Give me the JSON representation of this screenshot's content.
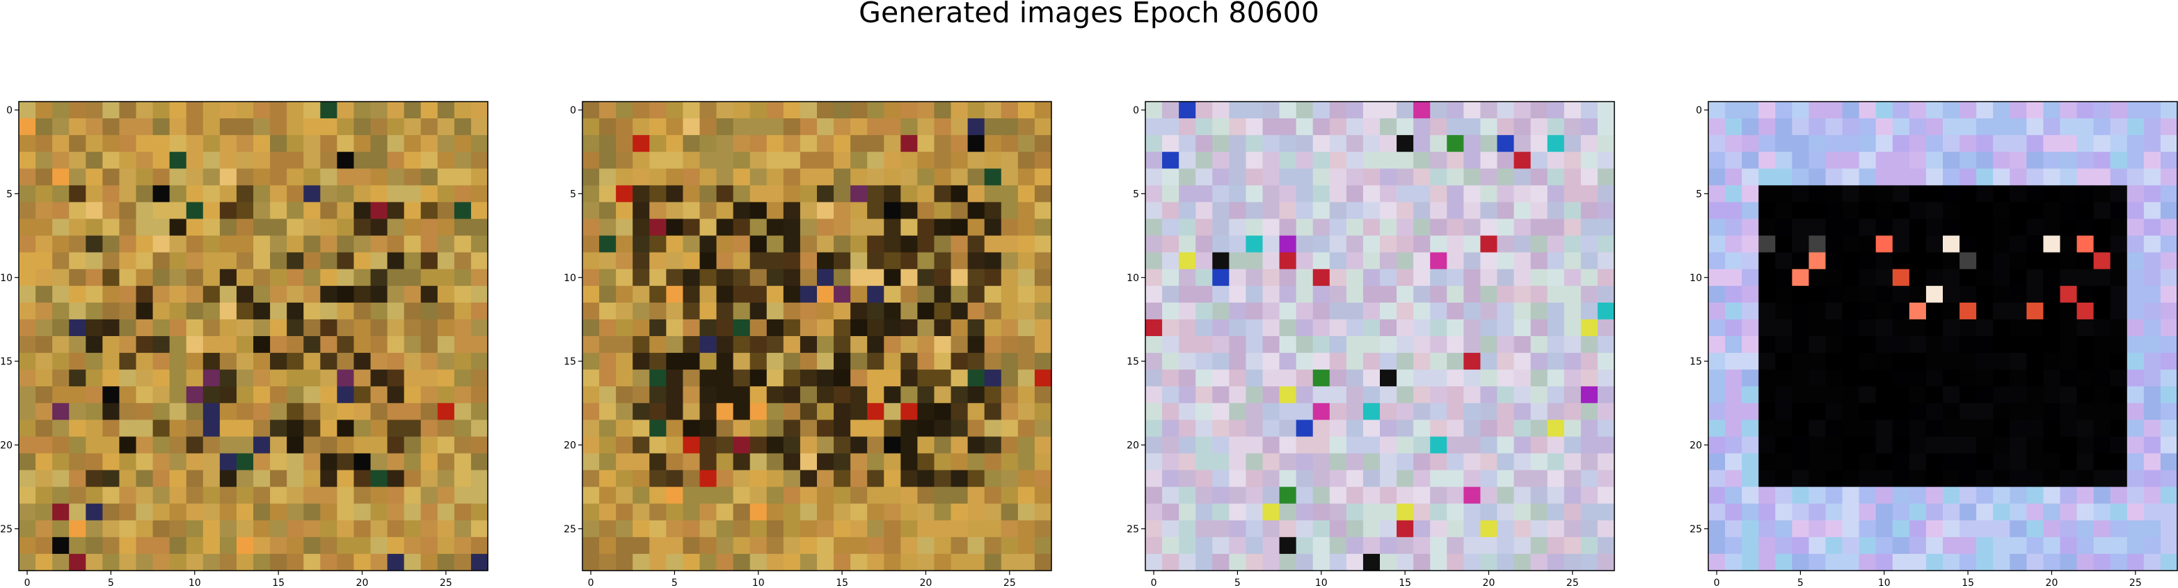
{
  "figure": {
    "title": "Generated images Epoch 80600"
  },
  "palette": {
    "warm_a": [
      "#c9a046",
      "#b88a3a",
      "#d2a24a",
      "#a8803c",
      "#c7b060",
      "#9c7636",
      "#d8a848",
      "#b5943e",
      "#c39046",
      "#8e7a3a",
      "#caa44e",
      "#b0803a",
      "#d6b45a",
      "#9e8a40",
      "#c08842",
      "#a89048"
    ],
    "warm_dark": [
      "#2a2010",
      "#3b2c12",
      "#1e1608",
      "#4a3616",
      "#56401a",
      "#322410",
      "#604818",
      "#261c0c",
      "#4e3414",
      "#3c3218"
    ],
    "pastel": [
      "#c9b7d6",
      "#b8c4e0",
      "#d6c2de",
      "#bcd6d8",
      "#e0c8d4",
      "#c4cce8",
      "#d2d6ea",
      "#b4c8c0",
      "#d8bcd2",
      "#c0b4dc",
      "#cfe0da",
      "#e2d4e6",
      "#bac0dc",
      "#d4e4e4",
      "#c6aed0",
      "#e6dcec"
    ],
    "pastel_lavender": [
      "#b4b4f0",
      "#a6c0f0",
      "#c8b0ec",
      "#b8d0f4",
      "#d0b8ee",
      "#9cb2ea",
      "#c2c8f4",
      "#e0c4f0",
      "#aabcf2",
      "#cdd8f6",
      "#9ed0ee",
      "#b9aaf0"
    ],
    "dark_region": [
      "#000000",
      "#030303",
      "#050508",
      "#020202",
      "#08080a",
      "#000000",
      "#010103"
    ],
    "accents": {
      "warm": [
        "#0a0a0a",
        "#1a4a2a",
        "#8a1a2a",
        "#2a2a5a",
        "#e8c070",
        "#f0a040",
        "#c02010",
        "#6a2a5a"
      ],
      "pastel": [
        "#101010",
        "#c02030",
        "#2040c0",
        "#e0e040",
        "#20c0c0",
        "#a020c0",
        "#d030a0",
        "#2a8a2a"
      ],
      "lavender_inner": [
        "#e05030",
        "#ff6a50",
        "#f8e8d8",
        "#d03030",
        "#203a20",
        "#404040",
        "#ff8060"
      ]
    }
  },
  "chart_data": [
    {
      "type": "heatmap",
      "image_style": "warm",
      "grid_size": 28,
      "xlim": [
        -0.5,
        27.5
      ],
      "ylim": [
        27.5,
        -0.5
      ],
      "xticks": [
        0,
        5,
        10,
        15,
        20,
        25
      ],
      "yticks": [
        0,
        5,
        10,
        15,
        20,
        25
      ],
      "xtick_labels": [
        "0",
        "5",
        "10",
        "15",
        "20",
        "25"
      ],
      "ytick_labels": [
        "0",
        "5",
        "10",
        "15",
        "20",
        "25"
      ],
      "seed": 11
    },
    {
      "type": "heatmap",
      "image_style": "warm_darker",
      "grid_size": 28,
      "xlim": [
        -0.5,
        27.5
      ],
      "ylim": [
        27.5,
        -0.5
      ],
      "xticks": [
        0,
        5,
        10,
        15,
        20,
        25
      ],
      "yticks": [
        0,
        5,
        10,
        15,
        20,
        25
      ],
      "xtick_labels": [
        "0",
        "5",
        "10",
        "15",
        "20",
        "25"
      ],
      "ytick_labels": [
        "0",
        "5",
        "10",
        "15",
        "20",
        "25"
      ],
      "seed": 23
    },
    {
      "type": "heatmap",
      "image_style": "pastel",
      "grid_size": 28,
      "xlim": [
        -0.5,
        27.5
      ],
      "ylim": [
        27.5,
        -0.5
      ],
      "xticks": [
        0,
        5,
        10,
        15,
        20,
        25
      ],
      "yticks": [
        0,
        5,
        10,
        15,
        20,
        25
      ],
      "xtick_labels": [
        "0",
        "5",
        "10",
        "15",
        "20",
        "25"
      ],
      "ytick_labels": [
        "0",
        "5",
        "10",
        "15",
        "20",
        "25"
      ],
      "seed": 37
    },
    {
      "type": "heatmap",
      "image_style": "lavender_dark_center",
      "grid_size": 28,
      "dark_region": {
        "row_start": 5,
        "row_end": 22,
        "col_start": 3,
        "col_end": 24
      },
      "xlim": [
        -0.5,
        27.5
      ],
      "ylim": [
        27.5,
        -0.5
      ],
      "xticks": [
        0,
        5,
        10,
        15,
        20,
        25
      ],
      "yticks": [
        0,
        5,
        10,
        15,
        20,
        25
      ],
      "xtick_labels": [
        "0",
        "5",
        "10",
        "15",
        "20",
        "25"
      ],
      "ytick_labels": [
        "0",
        "5",
        "10",
        "15",
        "20",
        "25"
      ],
      "seed": 53
    }
  ]
}
